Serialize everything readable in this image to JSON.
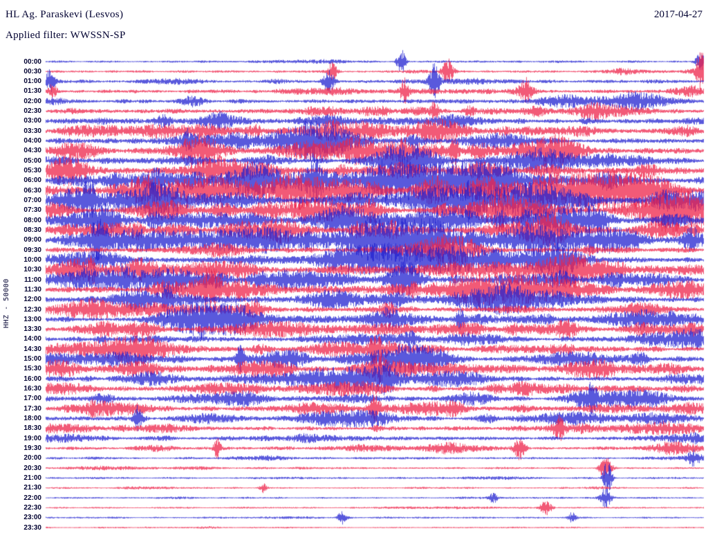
{
  "header": {
    "station": "HL Ag. Paraskevi (Lesvos)",
    "date": "2017-04-27",
    "filter_line": "Applied filter: WWSSN-SP"
  },
  "chart_data": {
    "type": "line",
    "subtype": "helicorder-day-plot",
    "title": "HL Ag. Paraskevi (Lesvos)",
    "date": "2017-04-27",
    "filter": "WWSSN-SP",
    "scale_label": "HHZ - 50000",
    "minutes_per_row": 30,
    "rows": 48,
    "row_times": [
      "00:00",
      "00:30",
      "01:00",
      "01:30",
      "02:00",
      "02:30",
      "03:00",
      "03:30",
      "04:00",
      "04:30",
      "05:00",
      "05:30",
      "06:00",
      "06:30",
      "07:00",
      "07:30",
      "08:00",
      "08:30",
      "09:00",
      "09:30",
      "10:00",
      "10:30",
      "11:00",
      "11:30",
      "12:00",
      "12:30",
      "13:00",
      "13:30",
      "14:00",
      "14:30",
      "15:00",
      "15:30",
      "16:00",
      "16:30",
      "17:00",
      "17:30",
      "18:00",
      "18:30",
      "19:00",
      "19:30",
      "20:00",
      "20:30",
      "21:00",
      "21:30",
      "22:00",
      "22:30",
      "23:00",
      "23:30"
    ],
    "colors": {
      "even_row": "#2121d0",
      "odd_row": "#ee2349",
      "text": "#000030",
      "background": "#ffffff"
    },
    "row_activity": [
      0.16,
      0.22,
      0.3,
      0.4,
      0.5,
      0.55,
      0.62,
      0.66,
      0.76,
      0.8,
      0.85,
      0.86,
      0.9,
      0.88,
      0.9,
      0.86,
      0.82,
      0.8,
      0.85,
      0.72,
      0.76,
      0.72,
      0.78,
      0.8,
      0.72,
      0.68,
      0.7,
      0.62,
      0.66,
      0.62,
      0.66,
      0.58,
      0.62,
      0.56,
      0.6,
      0.56,
      0.52,
      0.48,
      0.42,
      0.38,
      0.2,
      0.15,
      0.12,
      0.1,
      0.11,
      0.09,
      0.09,
      0.06
    ],
    "notable_events": [
      {
        "row": 0,
        "x": 0.54,
        "h": 1.6
      },
      {
        "row": 0,
        "x": 0.995,
        "h": 1.1
      },
      {
        "row": 1,
        "x": 0.435,
        "h": 1.2
      },
      {
        "row": 1,
        "x": 0.61,
        "h": 1.8
      },
      {
        "row": 1,
        "x": 0.995,
        "h": 2.6
      },
      {
        "row": 2,
        "x": 0.006,
        "h": 1.5
      },
      {
        "row": 2,
        "x": 0.43,
        "h": 1.4
      },
      {
        "row": 2,
        "x": 0.59,
        "h": 2.2
      },
      {
        "row": 3,
        "x": 0.01,
        "h": 0.9
      },
      {
        "row": 3,
        "x": 0.545,
        "h": 1.7
      },
      {
        "row": 3,
        "x": 0.73,
        "h": 1.4
      },
      {
        "row": 5,
        "x": 0.59,
        "h": 1.2
      },
      {
        "row": 8,
        "x": 0.4,
        "h": 1.5
      },
      {
        "row": 9,
        "x": 0.62,
        "h": 1.7
      },
      {
        "row": 12,
        "x": 0.41,
        "h": 1.6
      },
      {
        "row": 14,
        "x": 0.065,
        "h": 1.8
      },
      {
        "row": 15,
        "x": 0.69,
        "h": 2.0
      },
      {
        "row": 16,
        "x": 0.69,
        "h": 1.2
      },
      {
        "row": 18,
        "x": 0.08,
        "h": 1.6
      },
      {
        "row": 21,
        "x": 0.07,
        "h": 1.3
      },
      {
        "row": 23,
        "x": 0.25,
        "h": 1.5
      },
      {
        "row": 24,
        "x": 0.185,
        "h": 1.6
      },
      {
        "row": 26,
        "x": 0.63,
        "h": 1.3
      },
      {
        "row": 29,
        "x": 0.5,
        "h": 1.4
      },
      {
        "row": 30,
        "x": 0.295,
        "h": 1.4
      },
      {
        "row": 31,
        "x": 0.505,
        "h": 1.5
      },
      {
        "row": 32,
        "x": 0.52,
        "h": 1.4
      },
      {
        "row": 34,
        "x": 0.83,
        "h": 1.5
      },
      {
        "row": 35,
        "x": 0.5,
        "h": 1.6
      },
      {
        "row": 36,
        "x": 0.14,
        "h": 1.2
      },
      {
        "row": 37,
        "x": 0.78,
        "h": 1.3
      },
      {
        "row": 39,
        "x": 0.26,
        "h": 1.2
      },
      {
        "row": 39,
        "x": 0.72,
        "h": 1.5
      },
      {
        "row": 40,
        "x": 0.985,
        "h": 0.9
      },
      {
        "row": 41,
        "x": 0.85,
        "h": 1.4
      },
      {
        "row": 42,
        "x": 0.853,
        "h": 2.4
      },
      {
        "row": 43,
        "x": 0.33,
        "h": 0.6
      },
      {
        "row": 44,
        "x": 0.68,
        "h": 0.7
      },
      {
        "row": 44,
        "x": 0.85,
        "h": 1.3
      },
      {
        "row": 45,
        "x": 0.76,
        "h": 0.9
      },
      {
        "row": 46,
        "x": 0.45,
        "h": 0.8
      },
      {
        "row": 46,
        "x": 0.8,
        "h": 0.7
      }
    ]
  }
}
